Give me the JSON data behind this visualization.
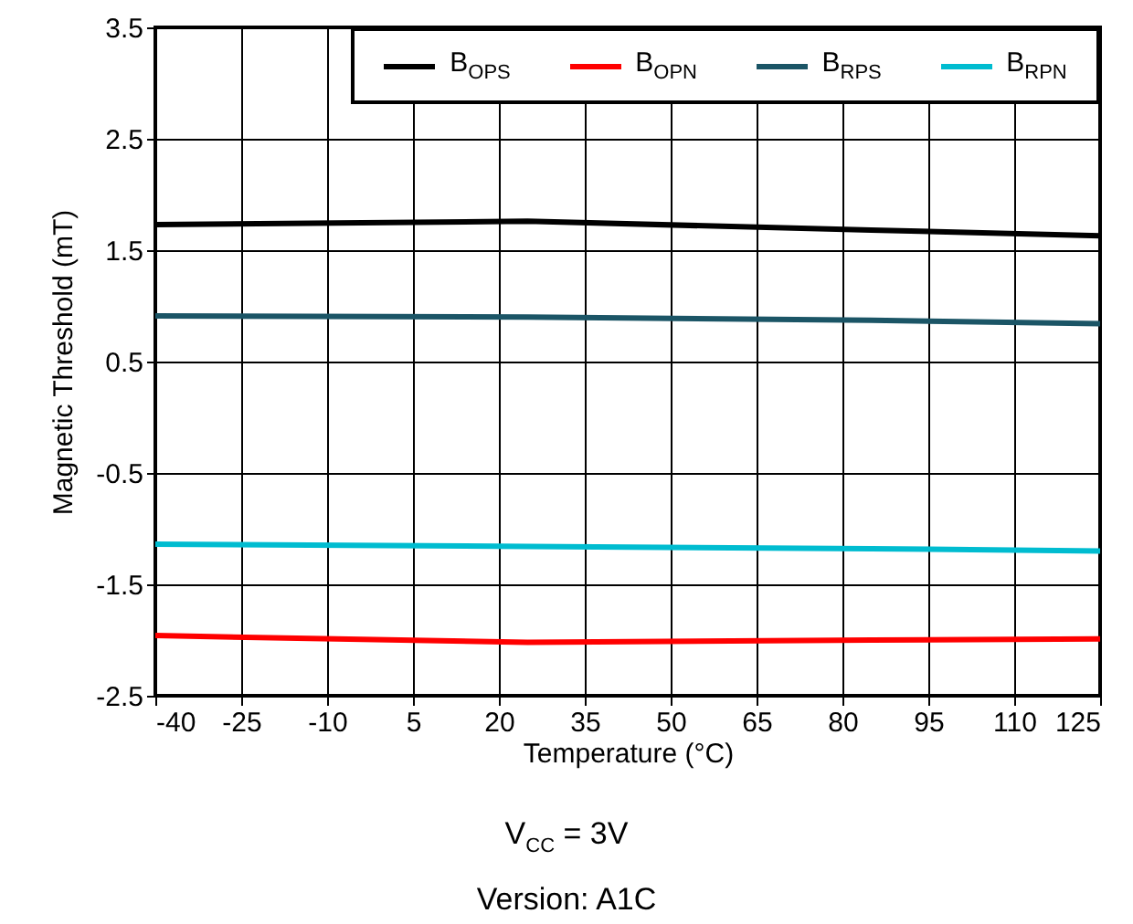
{
  "chart_data": {
    "type": "line",
    "xlabel": "Temperature (°C)",
    "ylabel": "Magnetic Threshold (mT)",
    "x": [
      -40,
      25,
      85,
      125
    ],
    "series": [
      {
        "name": "B$_{OPS}$",
        "color": "#000000",
        "values": [
          1.73,
          1.76,
          1.68,
          1.63
        ]
      },
      {
        "name": "B$_{OPN}$",
        "color": "#ff0000",
        "values": [
          -1.96,
          -2.02,
          -2.0,
          -1.99
        ]
      },
      {
        "name": "B$_{RPS}$",
        "color": "#1b5566",
        "values": [
          0.91,
          0.9,
          0.87,
          0.84
        ]
      },
      {
        "name": "B$_{RPN}$",
        "color": "#00bcd0",
        "values": [
          -1.14,
          -1.16,
          -1.18,
          -1.2
        ]
      }
    ],
    "xlim": [
      -40,
      125
    ],
    "xticks": [
      -40,
      -25,
      -10,
      5,
      20,
      35,
      50,
      65,
      80,
      95,
      110,
      125
    ],
    "ylim": [
      -2.5,
      3.5
    ],
    "yticks": [
      -2.5,
      -1.5,
      -0.5,
      0.5,
      1.5,
      2.5,
      3.5
    ],
    "grid": true,
    "legend": "top right",
    "annotations": [
      "V$_{CC}$ = 3V",
      "Version: A1C"
    ]
  }
}
